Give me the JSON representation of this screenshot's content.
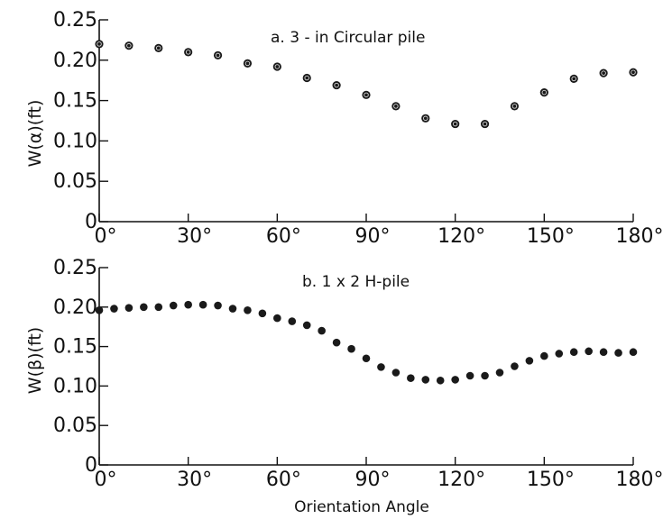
{
  "chart_data": [
    {
      "type": "scatter",
      "title": "a. 3 - in Circular pile",
      "ylabel": "W(α)(ft)",
      "xlabel": "",
      "xlim": [
        0,
        180
      ],
      "ylim": [
        0,
        0.25
      ],
      "grid": false,
      "x_tick_labels": [
        "0°",
        "30°",
        "60°",
        "90°",
        "120°",
        "150°",
        "180°"
      ],
      "y_tick_labels": [
        "0",
        "0.05",
        "0.10",
        "0.15",
        "0.20",
        "0.25"
      ],
      "x": [
        0,
        10,
        20,
        30,
        40,
        50,
        60,
        70,
        80,
        90,
        100,
        110,
        120,
        130,
        140,
        150,
        160,
        170,
        180
      ],
      "y": [
        0.22,
        0.218,
        0.215,
        0.21,
        0.206,
        0.196,
        0.192,
        0.178,
        0.169,
        0.157,
        0.143,
        0.128,
        0.121,
        0.121,
        0.143,
        0.16,
        0.177,
        0.184,
        0.185
      ]
    },
    {
      "type": "scatter",
      "title": "b. 1 x 2 H-pile",
      "ylabel": "W(β)(ft)",
      "xlabel": "Orientation Angle",
      "xlim": [
        0,
        180
      ],
      "ylim": [
        0,
        0.25
      ],
      "grid": false,
      "x_tick_labels": [
        "0°",
        "30°",
        "60°",
        "90°",
        "120°",
        "150°",
        "180°"
      ],
      "y_tick_labels": [
        "0",
        "0.05",
        "0.10",
        "0.15",
        "0.20",
        "0.25"
      ],
      "x": [
        0,
        5,
        10,
        15,
        20,
        25,
        30,
        35,
        40,
        45,
        50,
        55,
        60,
        65,
        70,
        75,
        80,
        85,
        90,
        95,
        100,
        105,
        110,
        115,
        120,
        125,
        130,
        135,
        140,
        145,
        150,
        155,
        160,
        165,
        170,
        175,
        180
      ],
      "y": [
        0.196,
        0.198,
        0.199,
        0.2,
        0.2,
        0.202,
        0.203,
        0.203,
        0.202,
        0.198,
        0.196,
        0.192,
        0.186,
        0.182,
        0.177,
        0.17,
        0.155,
        0.147,
        0.135,
        0.124,
        0.117,
        0.11,
        0.108,
        0.107,
        0.108,
        0.113,
        0.113,
        0.117,
        0.125,
        0.132,
        0.138,
        0.141,
        0.143,
        0.144,
        0.143,
        0.142,
        0.143
      ]
    }
  ]
}
